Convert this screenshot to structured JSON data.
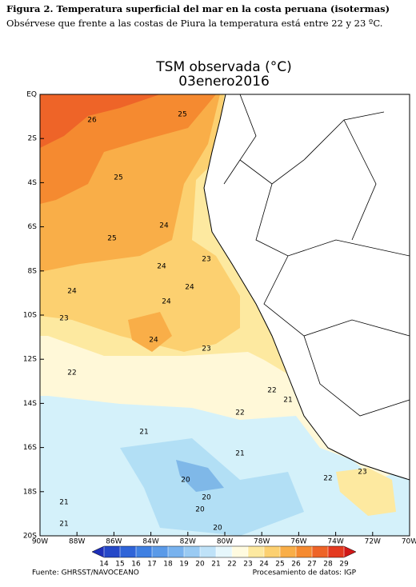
{
  "caption": {
    "title": "Figura 2. Temperatura superficial del mar en la costa peruana (isotermas)",
    "subtitle": "Obsérvese que frente a las costas de Piura la temperatura está entre 22 y 23 ºC."
  },
  "map": {
    "title": "TSM observada (°C)",
    "date": "03enero2016",
    "lat_labels": [
      "EQ",
      "2S",
      "4S",
      "6S",
      "8S",
      "10S",
      "12S",
      "14S",
      "16S",
      "18S",
      "20S"
    ],
    "lon_labels": [
      "90W",
      "88W",
      "86W",
      "84W",
      "82W",
      "80W",
      "78W",
      "76W",
      "74W",
      "72W",
      "70W"
    ],
    "isotherm_labels": [
      "26",
      "25",
      "25",
      "24",
      "25",
      "23",
      "24",
      "24",
      "24",
      "24",
      "23",
      "24",
      "23",
      "22",
      "22",
      "21",
      "22",
      "21",
      "21",
      "20",
      "20",
      "20",
      "20",
      "21",
      "21",
      "22",
      "23"
    ]
  },
  "colorbar": {
    "ticks": [
      14,
      15,
      16,
      17,
      18,
      19,
      20,
      21,
      22,
      23,
      24,
      25,
      26,
      27,
      28,
      29
    ],
    "colors": [
      "#1e2fb8",
      "#2548c8",
      "#2f64d8",
      "#3f80e2",
      "#5a9ae8",
      "#78b2ee",
      "#99caf3",
      "#bfe2f8",
      "#e6f7fc",
      "#fffbe0",
      "#fde9a0",
      "#fcd070",
      "#f9ae48",
      "#f58a30",
      "#ee6428",
      "#e43a20",
      "#d01818"
    ]
  },
  "footer": {
    "source": "Fuente: GHRSST/NAVOCEANO",
    "processing": "Procesamiento de datos: IGP"
  }
}
